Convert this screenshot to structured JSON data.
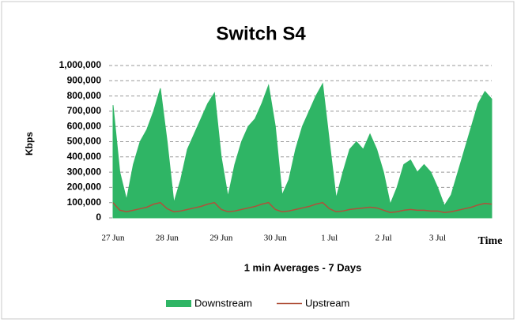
{
  "chart_data": {
    "type": "area-line",
    "title": "Switch S4",
    "y_label": "Kbps",
    "x_label": "1 min Averages - 7 Days",
    "x_end_label": "Time",
    "categories": [
      "27 Jun",
      null,
      null,
      null,
      null,
      null,
      null,
      null,
      "28 Jun",
      null,
      null,
      null,
      null,
      null,
      null,
      null,
      "29 Jun",
      null,
      null,
      null,
      null,
      null,
      null,
      null,
      "30 Jun",
      null,
      null,
      null,
      null,
      null,
      null,
      null,
      "1 Jul",
      null,
      null,
      null,
      null,
      null,
      null,
      null,
      "2 Jul",
      null,
      null,
      null,
      null,
      null,
      null,
      null,
      "3 Jul",
      null,
      null,
      null,
      null,
      null,
      null,
      null,
      null
    ],
    "series": [
      {
        "name": "Downstream",
        "color": "#2fb565",
        "style": "area",
        "values": [
          740000,
          300000,
          120000,
          350000,
          500000,
          580000,
          700000,
          850000,
          500000,
          100000,
          250000,
          450000,
          550000,
          650000,
          750000,
          820000,
          400000,
          140000,
          350000,
          500000,
          600000,
          650000,
          750000,
          870000,
          600000,
          150000,
          250000,
          450000,
          600000,
          700000,
          800000,
          880000,
          500000,
          130000,
          300000,
          450000,
          500000,
          450000,
          550000,
          450000,
          300000,
          90000,
          200000,
          350000,
          380000,
          300000,
          350000,
          300000,
          200000,
          80000,
          150000,
          300000,
          450000,
          600000,
          750000,
          830000,
          780000
        ]
      },
      {
        "name": "Upstream",
        "color": "#b0503a",
        "style": "line",
        "values": [
          100000,
          50000,
          40000,
          50000,
          60000,
          70000,
          90000,
          100000,
          60000,
          40000,
          45000,
          55000,
          65000,
          75000,
          90000,
          100000,
          55000,
          40000,
          45000,
          55000,
          65000,
          75000,
          90000,
          100000,
          55000,
          40000,
          45000,
          55000,
          65000,
          75000,
          90000,
          100000,
          60000,
          40000,
          45000,
          55000,
          60000,
          65000,
          70000,
          65000,
          50000,
          35000,
          40000,
          50000,
          55000,
          50000,
          50000,
          45000,
          45000,
          35000,
          40000,
          50000,
          60000,
          70000,
          85000,
          95000,
          90000
        ]
      }
    ],
    "ylim": [
      0,
      1000000
    ],
    "yticks": [
      0,
      {
        "value": 100000,
        "label": "100,000"
      },
      {
        "value": 200000,
        "label": "200,000"
      },
      {
        "value": 300000,
        "label": "300,000"
      },
      {
        "value": 400000,
        "label": "400,000"
      },
      {
        "value": 500000,
        "label": "500,000"
      },
      {
        "value": 600000,
        "label": "600,000"
      },
      {
        "value": 700000,
        "label": "700,000"
      },
      {
        "value": 800000,
        "label": "800,000"
      },
      {
        "value": 900000,
        "label": "900,000"
      },
      {
        "value": 1000000,
        "label": "1,000,000"
      }
    ],
    "grid": true,
    "legend": "bottom"
  }
}
